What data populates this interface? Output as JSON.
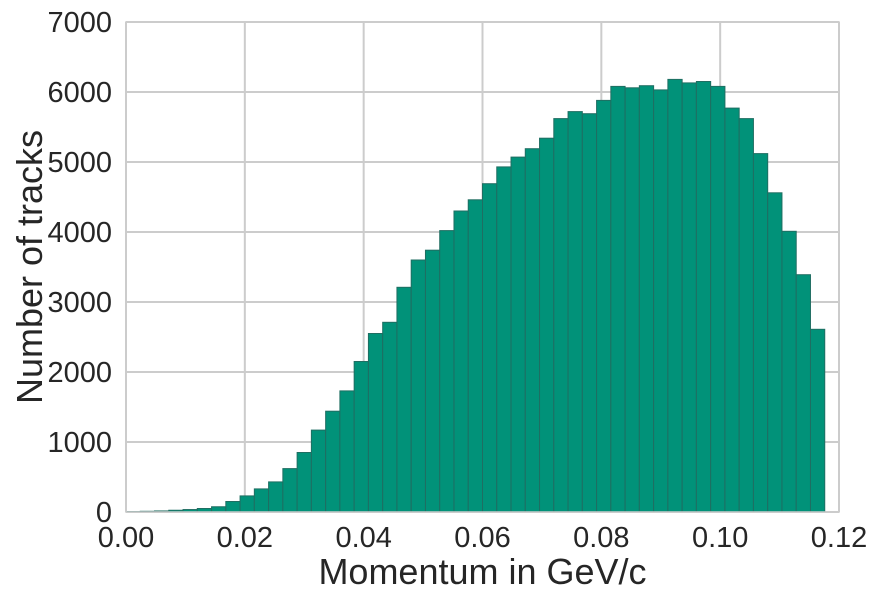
{
  "chart_data": {
    "type": "bar",
    "xlabel": "Momentum in GeV/c",
    "ylabel": "Number of tracks",
    "xlim": [
      0.0,
      0.12
    ],
    "ylim": [
      0,
      7000
    ],
    "x_ticks": [
      "0.00",
      "0.02",
      "0.04",
      "0.06",
      "0.08",
      "0.10",
      "0.12"
    ],
    "y_ticks": [
      "0",
      "1000",
      "2000",
      "3000",
      "4000",
      "5000",
      "6000",
      "7000"
    ],
    "grid": true,
    "bin_edges_start": 0.0,
    "bin_width": 0.0024,
    "values": [
      5,
      10,
      15,
      25,
      35,
      50,
      75,
      150,
      230,
      330,
      430,
      620,
      850,
      1170,
      1440,
      1730,
      2150,
      2550,
      2710,
      3210,
      3600,
      3740,
      4020,
      4300,
      4460,
      4690,
      4930,
      5070,
      5190,
      5340,
      5620,
      5720,
      5690,
      5880,
      6080,
      6060,
      6090,
      6030,
      6180,
      6130,
      6150,
      6080,
      5770,
      5620,
      5120,
      4560,
      4010,
      3390,
      2610,
      0
    ],
    "bar_color": "#019279",
    "bar_edge_color": "#1f6e62"
  }
}
